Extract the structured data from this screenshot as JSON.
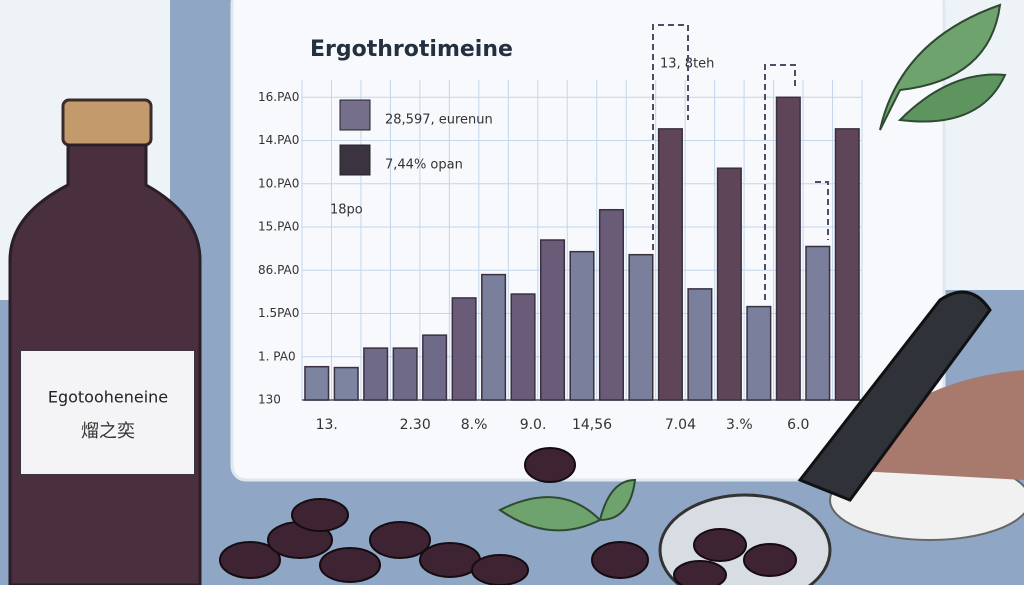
{
  "chart_data": {
    "type": "bar",
    "title": "Ergothrotimeine",
    "categories": [
      "13.",
      null,
      null,
      "2.30",
      null,
      "8.%",
      null,
      "9.0.",
      null,
      "14,56",
      null,
      null,
      "7.04",
      null,
      "3.%",
      null,
      "6.0",
      null,
      null
    ],
    "values": [
      0.77,
      0.75,
      1.2,
      1.2,
      1.5,
      2.36,
      2.9,
      2.45,
      3.7,
      3.43,
      4.4,
      3.36,
      6.27,
      2.57,
      5.36,
      2.16,
      7.0,
      3.55,
      6.27
    ],
    "colors": [
      "#7c84a0",
      "#7c84a0",
      "#6f6a88",
      "#6f6a88",
      "#6f6a88",
      "#6a5b78",
      "#7a7f9c",
      "#6a5b78",
      "#6a5b78",
      "#7a7f9c",
      "#6a5b78",
      "#7a7f9c",
      "#5e4658",
      "#7a7f9c",
      "#5e4658",
      "#7a7f9c",
      "#5e4658",
      "#7a7f9c",
      "#5e4658"
    ],
    "ylim": [
      0,
      7.4
    ],
    "yticks": [
      {
        "value": 0,
        "label": "130"
      },
      {
        "value": 1,
        "label": "1. PA0"
      },
      {
        "value": 2,
        "label": "1.5PA0"
      },
      {
        "value": 3,
        "label": "86.PA0"
      },
      {
        "value": 4,
        "label": "15.PA0"
      },
      {
        "value": 5,
        "label": "10.PA0"
      },
      {
        "value": 6,
        "label": "14.PA0"
      },
      {
        "value": 7,
        "label": "16.PA0"
      }
    ],
    "grid": true,
    "legend": [
      {
        "label": "28,597, eurenun",
        "color": "#756f8c"
      },
      {
        "label": "7,44% opan",
        "color": "#3b3440"
      }
    ],
    "annotations": [
      "18po",
      "13, 8teh"
    ]
  },
  "bottle_label": {
    "title": "Egotooheneine",
    "subtitle": "熘之奕"
  }
}
